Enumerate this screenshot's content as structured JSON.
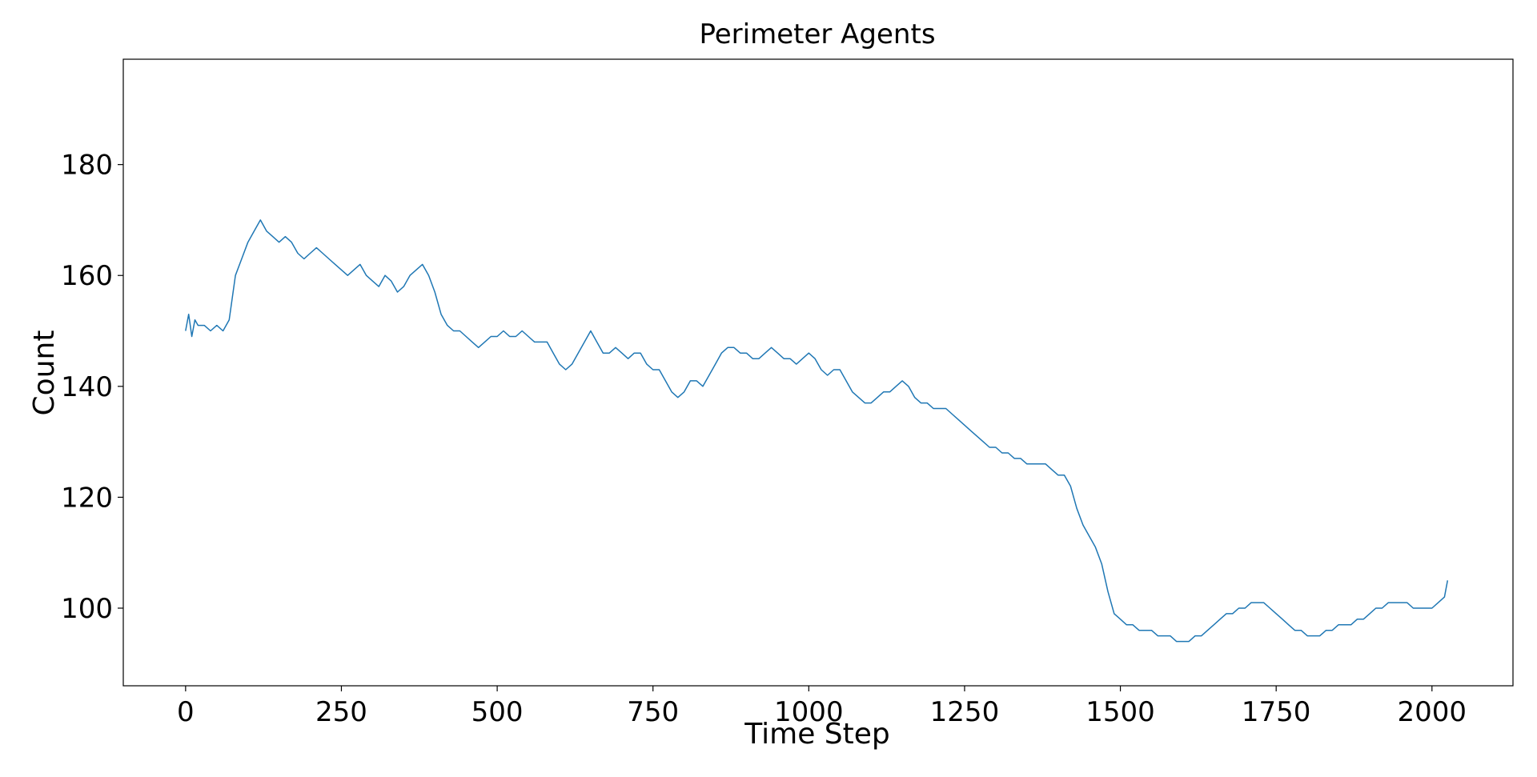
{
  "chart_data": {
    "type": "line",
    "title": "Perimeter Agents",
    "xlabel": "Time Step",
    "ylabel": "Count",
    "xlim": [
      -100,
      2130
    ],
    "ylim": [
      86,
      199
    ],
    "xticks": [
      0,
      250,
      500,
      750,
      1000,
      1250,
      1500,
      1750,
      2000
    ],
    "yticks": [
      100,
      120,
      140,
      160,
      180
    ],
    "grid": false,
    "line_color": "#1f77b4",
    "series": [
      {
        "name": "",
        "points": [
          [
            0,
            150
          ],
          [
            5,
            153
          ],
          [
            10,
            149
          ],
          [
            15,
            152
          ],
          [
            20,
            151
          ],
          [
            30,
            151
          ],
          [
            40,
            150
          ],
          [
            50,
            151
          ],
          [
            60,
            150
          ],
          [
            70,
            152
          ],
          [
            80,
            160
          ],
          [
            90,
            163
          ],
          [
            100,
            166
          ],
          [
            110,
            168
          ],
          [
            120,
            170
          ],
          [
            130,
            168
          ],
          [
            140,
            167
          ],
          [
            150,
            166
          ],
          [
            160,
            167
          ],
          [
            170,
            166
          ],
          [
            180,
            164
          ],
          [
            190,
            163
          ],
          [
            200,
            164
          ],
          [
            210,
            165
          ],
          [
            220,
            164
          ],
          [
            230,
            163
          ],
          [
            240,
            162
          ],
          [
            250,
            161
          ],
          [
            260,
            160
          ],
          [
            270,
            161
          ],
          [
            280,
            162
          ],
          [
            290,
            160
          ],
          [
            300,
            159
          ],
          [
            310,
            158
          ],
          [
            320,
            160
          ],
          [
            330,
            159
          ],
          [
            340,
            157
          ],
          [
            350,
            158
          ],
          [
            360,
            160
          ],
          [
            370,
            161
          ],
          [
            380,
            162
          ],
          [
            390,
            160
          ],
          [
            400,
            157
          ],
          [
            410,
            153
          ],
          [
            420,
            151
          ],
          [
            430,
            150
          ],
          [
            440,
            150
          ],
          [
            450,
            149
          ],
          [
            460,
            148
          ],
          [
            470,
            147
          ],
          [
            480,
            148
          ],
          [
            490,
            149
          ],
          [
            500,
            149
          ],
          [
            510,
            150
          ],
          [
            520,
            149
          ],
          [
            530,
            149
          ],
          [
            540,
            150
          ],
          [
            550,
            149
          ],
          [
            560,
            148
          ],
          [
            570,
            148
          ],
          [
            580,
            148
          ],
          [
            590,
            146
          ],
          [
            600,
            144
          ],
          [
            610,
            143
          ],
          [
            620,
            144
          ],
          [
            630,
            146
          ],
          [
            640,
            148
          ],
          [
            650,
            150
          ],
          [
            660,
            148
          ],
          [
            670,
            146
          ],
          [
            680,
            146
          ],
          [
            690,
            147
          ],
          [
            700,
            146
          ],
          [
            710,
            145
          ],
          [
            720,
            146
          ],
          [
            730,
            146
          ],
          [
            740,
            144
          ],
          [
            750,
            143
          ],
          [
            760,
            143
          ],
          [
            770,
            141
          ],
          [
            780,
            139
          ],
          [
            790,
            138
          ],
          [
            800,
            139
          ],
          [
            810,
            141
          ],
          [
            820,
            141
          ],
          [
            830,
            140
          ],
          [
            840,
            142
          ],
          [
            850,
            144
          ],
          [
            860,
            146
          ],
          [
            870,
            147
          ],
          [
            880,
            147
          ],
          [
            890,
            146
          ],
          [
            900,
            146
          ],
          [
            910,
            145
          ],
          [
            920,
            145
          ],
          [
            930,
            146
          ],
          [
            940,
            147
          ],
          [
            950,
            146
          ],
          [
            960,
            145
          ],
          [
            970,
            145
          ],
          [
            980,
            144
          ],
          [
            990,
            145
          ],
          [
            1000,
            146
          ],
          [
            1010,
            145
          ],
          [
            1020,
            143
          ],
          [
            1030,
            142
          ],
          [
            1040,
            143
          ],
          [
            1050,
            143
          ],
          [
            1060,
            141
          ],
          [
            1070,
            139
          ],
          [
            1080,
            138
          ],
          [
            1090,
            137
          ],
          [
            1100,
            137
          ],
          [
            1110,
            138
          ],
          [
            1120,
            139
          ],
          [
            1130,
            139
          ],
          [
            1140,
            140
          ],
          [
            1150,
            141
          ],
          [
            1160,
            140
          ],
          [
            1170,
            138
          ],
          [
            1180,
            137
          ],
          [
            1190,
            137
          ],
          [
            1200,
            136
          ],
          [
            1210,
            136
          ],
          [
            1220,
            136
          ],
          [
            1230,
            135
          ],
          [
            1240,
            134
          ],
          [
            1250,
            133
          ],
          [
            1260,
            132
          ],
          [
            1270,
            131
          ],
          [
            1280,
            130
          ],
          [
            1290,
            129
          ],
          [
            1300,
            129
          ],
          [
            1310,
            128
          ],
          [
            1320,
            128
          ],
          [
            1330,
            127
          ],
          [
            1340,
            127
          ],
          [
            1350,
            126
          ],
          [
            1360,
            126
          ],
          [
            1370,
            126
          ],
          [
            1380,
            126
          ],
          [
            1390,
            125
          ],
          [
            1400,
            124
          ],
          [
            1410,
            124
          ],
          [
            1420,
            122
          ],
          [
            1430,
            118
          ],
          [
            1440,
            115
          ],
          [
            1450,
            113
          ],
          [
            1460,
            111
          ],
          [
            1470,
            108
          ],
          [
            1480,
            103
          ],
          [
            1490,
            99
          ],
          [
            1500,
            98
          ],
          [
            1510,
            97
          ],
          [
            1520,
            97
          ],
          [
            1530,
            96
          ],
          [
            1540,
            96
          ],
          [
            1550,
            96
          ],
          [
            1560,
            95
          ],
          [
            1570,
            95
          ],
          [
            1580,
            95
          ],
          [
            1590,
            94
          ],
          [
            1600,
            94
          ],
          [
            1610,
            94
          ],
          [
            1620,
            95
          ],
          [
            1630,
            95
          ],
          [
            1640,
            96
          ],
          [
            1650,
            97
          ],
          [
            1660,
            98
          ],
          [
            1670,
            99
          ],
          [
            1680,
            99
          ],
          [
            1690,
            100
          ],
          [
            1700,
            100
          ],
          [
            1710,
            101
          ],
          [
            1720,
            101
          ],
          [
            1730,
            101
          ],
          [
            1740,
            100
          ],
          [
            1750,
            99
          ],
          [
            1760,
            98
          ],
          [
            1770,
            97
          ],
          [
            1780,
            96
          ],
          [
            1790,
            96
          ],
          [
            1800,
            95
          ],
          [
            1810,
            95
          ],
          [
            1820,
            95
          ],
          [
            1830,
            96
          ],
          [
            1840,
            96
          ],
          [
            1850,
            97
          ],
          [
            1860,
            97
          ],
          [
            1870,
            97
          ],
          [
            1880,
            98
          ],
          [
            1890,
            98
          ],
          [
            1900,
            99
          ],
          [
            1910,
            100
          ],
          [
            1920,
            100
          ],
          [
            1930,
            101
          ],
          [
            1940,
            101
          ],
          [
            1950,
            101
          ],
          [
            1960,
            101
          ],
          [
            1970,
            100
          ],
          [
            1980,
            100
          ],
          [
            1990,
            100
          ],
          [
            2000,
            100
          ],
          [
            2010,
            101
          ],
          [
            2020,
            102
          ],
          [
            2025,
            105
          ]
        ]
      }
    ]
  }
}
